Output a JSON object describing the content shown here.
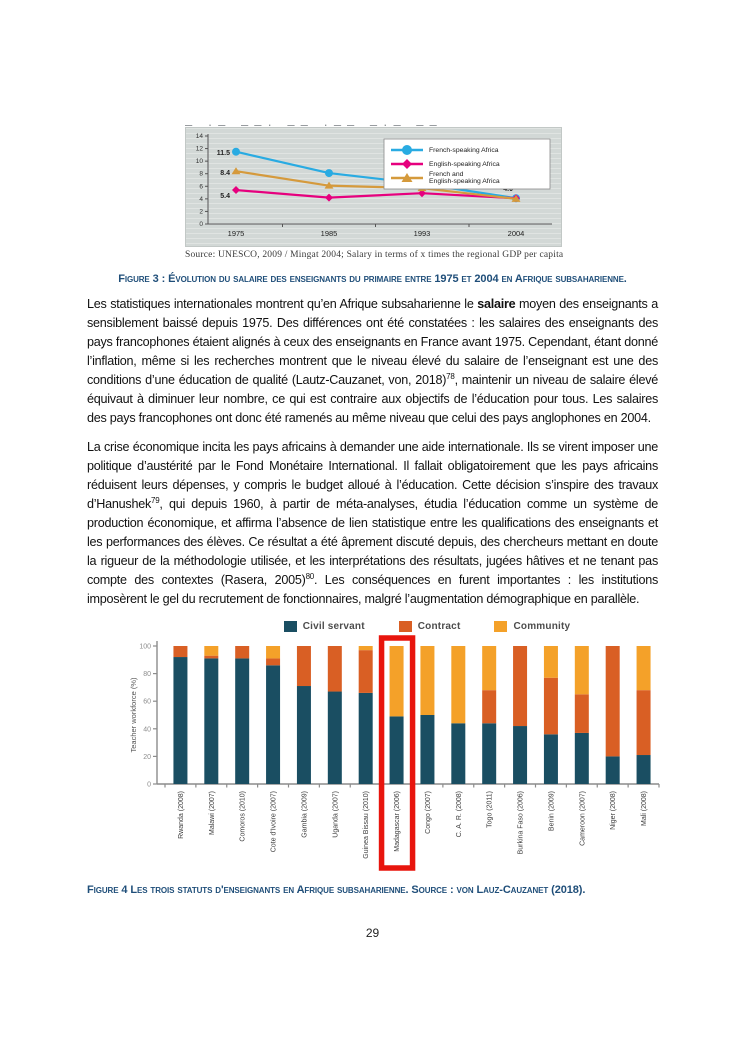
{
  "page": {
    "number": "29"
  },
  "figure3": {
    "cropped_title": "– ·– ––· –– ·–– –·– ––",
    "source_line": "Source: UNESCO,  2009 / Mingat 2004;  Salary in terms of x times  the regional GDP  per capita",
    "caption": "Figure 3 : Évolution du salaire des enseignants du primaire entre 1975 et 2004 en Afrique subsaharienne."
  },
  "paragraph1": {
    "part1": "Les statistiques internationales montrent qu’en Afrique subsaharienne le ",
    "bold1": "salaire",
    "part2": " moyen des enseignants a sensiblement baissé depuis 1975. Des différences ont été constatées : les salaires des enseignants des pays francophones étaient alignés à ceux des enseignants en France avant 1975. Cependant, étant donné l’inflation, même si les recherches montrent que le niveau élevé du salaire de l’enseignant est une des conditions d’une éducation de qualité (Lautz-Cauzanet, von, 2018)",
    "sup1": "78",
    "part3": ", maintenir un niveau de salaire élevé équivaut à diminuer leur nombre, ce qui est contraire aux objectifs de l’éducation pour tous. Les salaires des pays francophones ont donc été ramenés au même niveau que celui des pays anglophones en 2004."
  },
  "paragraph2": {
    "part1": "La crise économique incita les pays africains à demander une aide internationale. Ils se virent imposer une politique d’austérité par le Fond Monétaire International. Il fallait obligatoirement que les pays africains réduisent leurs dépenses, y compris le budget alloué à l’éducation. Cette décision s’inspire des travaux d’Hanushek",
    "sup1": "79",
    "part2": ", qui depuis 1960, à partir de méta-analyses, étudia l’éducation comme un système de production économique, et affirma l’absence de lien statistique entre les qualifications des enseignants et les performances des élèves. Ce résultat a été âprement discuté depuis, des chercheurs mettant en doute la rigueur de la méthodologie utilisée, et les interprétations des résultats, jugées hâtives et ne tenant pas compte des contextes (Rasera, 2005)",
    "sup2": "80",
    "part3": ". Les conséquences en furent importantes : les institutions imposèrent le gel du recrutement de fonctionnaires, malgré l’augmentation démographique en parallèle."
  },
  "figure4": {
    "caption": "Figure 4 Les trois statuts d'enseignants en Afrique subsaharienne. Source : von Lauz-Cauzanet (2018)."
  },
  "chart_data": [
    {
      "type": "line",
      "x": [
        "1975",
        "1985",
        "1993",
        "2004"
      ],
      "ylim": [
        0,
        14
      ],
      "yticks": [
        0,
        2,
        4,
        6,
        8,
        10,
        12,
        14
      ],
      "plot_bg": "#d2d8d6",
      "legend_position": "top-right",
      "series": [
        {
          "name": "French-speaking Africa",
          "legend_lines": [
            "French-speaking Africa"
          ],
          "color": "#29ABE2",
          "marker": "circle",
          "values": [
            11.5,
            8.1,
            6.4,
            4.1
          ]
        },
        {
          "name": "English-speaking Africa",
          "legend_lines": [
            "English-speaking Africa"
          ],
          "color": "#E6007E",
          "marker": "diamond",
          "values": [
            5.4,
            4.2,
            4.9,
            4.1
          ]
        },
        {
          "name": "French and English-speaking Africa",
          "legend_lines": [
            "French and",
            "English-speaking Africa"
          ],
          "color": "#D needs",
          "marker": "triangle",
          "values": [
            8.4,
            6.1,
            5.7,
            4.0
          ]
        }
      ],
      "annotations": [
        {
          "text": "11.5",
          "x": 44,
          "y": 27,
          "anchor": "end"
        },
        {
          "text": "8.4",
          "x": 44,
          "y": 47,
          "anchor": "end"
        },
        {
          "text": "5.4",
          "x": 44,
          "y": 70,
          "anchor": "end"
        },
        {
          "text": "4.0",
          "x": 327,
          "y": 63,
          "anchor": "end"
        }
      ]
    },
    {
      "type": "stacked-bar",
      "ylabel": "Teacher workforce (%)",
      "ylim": [
        0,
        100
      ],
      "yticks": [
        0,
        20,
        40,
        60,
        80,
        100
      ],
      "legend": [
        "Civil servant",
        "Contract",
        "Community"
      ],
      "colors_list": [
        "#1A4E62",
        "#D95F24",
        "#F4A129"
      ],
      "categories": [
        "Rwanda (2008)",
        "Malawi (2007)",
        "Comoros (2010)",
        "Cote d'Ivoire (2007)",
        "Gambia (2009)",
        "Uganda (2007)",
        "Guinea Bissau (2010)",
        "Madagascar (2006)",
        "Congo (2007)",
        "C. A. R. (2008)",
        "Togo (2011)",
        "Burkina Faso (2006)",
        "Benin (2009)",
        "Cameroon (2007)",
        "Niger (2008)",
        "Mali (2008)"
      ],
      "series": [
        {
          "name": "Civil servant",
          "values": [
            92,
            91,
            91,
            86,
            71,
            67,
            66,
            49,
            50,
            44,
            44,
            42,
            36,
            37,
            20,
            21
          ]
        },
        {
          "name": "Contract",
          "values": [
            8,
            2,
            9,
            5,
            29,
            33,
            31,
            0,
            0,
            0,
            24,
            58,
            41,
            28,
            80,
            47
          ]
        },
        {
          "name": "Community",
          "values": [
            0,
            7,
            0,
            9,
            0,
            0,
            3,
            51,
            50,
            56,
            32,
            0,
            23,
            35,
            0,
            32
          ]
        }
      ],
      "highlight": {
        "category": "Madagascar (2006)",
        "color": "#E8150D"
      }
    }
  ]
}
